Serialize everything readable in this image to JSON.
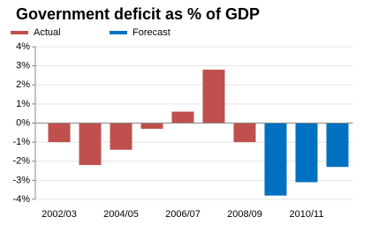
{
  "chart_data": {
    "type": "bar",
    "title": "Government deficit as % of GDP",
    "categories": [
      "2002/03",
      null,
      "2004/05",
      null,
      "2006/07",
      null,
      "2008/09",
      null,
      "2010/11",
      null
    ],
    "series": [
      {
        "name": "Actual",
        "color": "#c0504d",
        "values": [
          -1.0,
          -2.2,
          -1.4,
          -0.3,
          0.6,
          2.8,
          -1.0,
          null,
          null,
          null
        ]
      },
      {
        "name": "Forecast",
        "color": "#0070c0",
        "values": [
          null,
          null,
          null,
          null,
          null,
          null,
          null,
          -3.8,
          -3.1,
          -2.3
        ]
      }
    ],
    "ylim": [
      -4,
      4
    ],
    "yticks": [
      {
        "value": -4,
        "label": "-4%"
      },
      {
        "value": -3,
        "label": "-3%"
      },
      {
        "value": -2,
        "label": "-2%"
      },
      {
        "value": -1,
        "label": "-1%"
      },
      {
        "value": 0,
        "label": "0%"
      },
      {
        "value": 1,
        "label": "1%"
      },
      {
        "value": 2,
        "label": "2%"
      },
      {
        "value": 3,
        "label": "3%"
      },
      {
        "value": 4,
        "label": "4%"
      }
    ],
    "grid": true,
    "legend": "top-left"
  }
}
